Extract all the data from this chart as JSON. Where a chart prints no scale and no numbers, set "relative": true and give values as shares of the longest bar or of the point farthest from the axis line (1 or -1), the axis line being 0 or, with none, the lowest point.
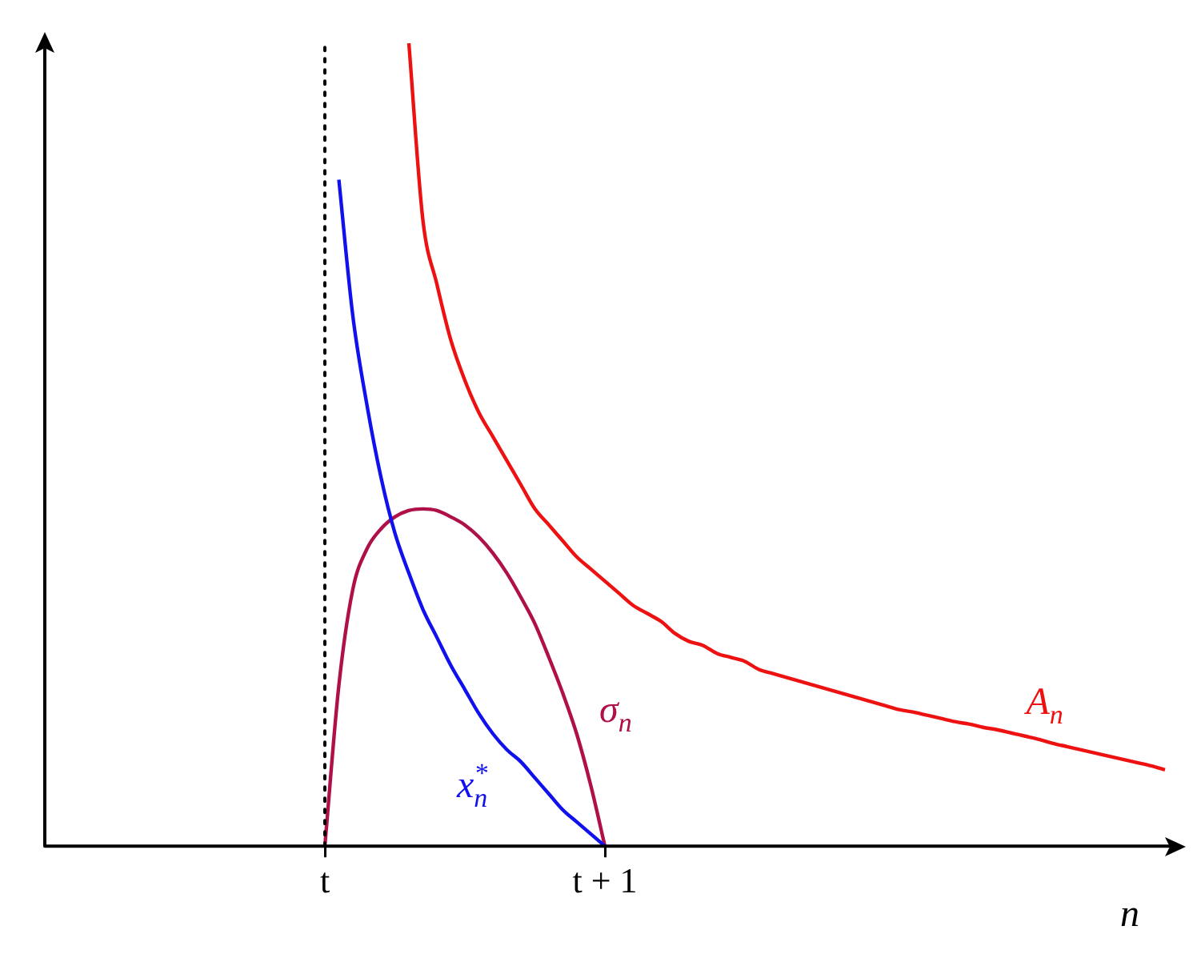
{
  "chart_data": {
    "type": "line",
    "relative": true,
    "xlabel": "n",
    "categories": [
      null,
      null,
      null,
      null,
      null,
      null,
      null,
      null,
      null,
      null,
      null,
      null,
      null,
      null,
      null,
      null,
      null,
      null,
      null,
      null,
      "t",
      null,
      null,
      null,
      null,
      null,
      null,
      null,
      null,
      null,
      null,
      null,
      null,
      null,
      null,
      null,
      null,
      null,
      null,
      null,
      "t + 1",
      null,
      null,
      null,
      null,
      null,
      null,
      null,
      null,
      null,
      null,
      null,
      null,
      null,
      null,
      null,
      null,
      null,
      null,
      null,
      null,
      null,
      null,
      null,
      null,
      null,
      null,
      null,
      null,
      null,
      null,
      null,
      null,
      null,
      null,
      null,
      null,
      null,
      null,
      null,
      null
    ],
    "tick_labels": "x",
    "grid": false,
    "legend": false,
    "marker": "none",
    "line_style": "solid",
    "ref_lines": [
      {
        "axis": "x",
        "value": "t",
        "color": "#000000",
        "line_style": "dotted"
      }
    ],
    "series": [
      {
        "name": "A$_{n}$",
        "color": "#ee1111",
        "values": [
          null,
          null,
          null,
          null,
          null,
          null,
          null,
          null,
          null,
          null,
          null,
          null,
          null,
          null,
          null,
          null,
          null,
          null,
          null,
          null,
          null,
          null,
          null,
          null,
          null,
          null,
          1.0,
          0.78,
          0.7,
          0.63,
          0.58,
          0.54,
          0.51,
          0.48,
          0.45,
          0.42,
          0.4,
          0.38,
          0.36,
          0.345,
          0.33,
          0.315,
          0.3,
          0.29,
          0.28,
          0.265,
          0.255,
          0.25,
          0.24,
          0.235,
          0.23,
          0.22,
          0.215,
          0.21,
          0.205,
          0.2,
          0.195,
          0.19,
          0.185,
          0.18,
          0.175,
          0.17,
          0.167,
          0.163,
          0.159,
          0.155,
          0.152,
          0.148,
          0.145,
          0.141,
          0.137,
          0.133,
          0.128,
          0.124,
          0.12,
          0.116,
          0.112,
          0.108,
          0.104,
          0.1,
          0.095
        ]
      },
      {
        "name": "x$^{*}$$_{n}$",
        "color": "#1111ee",
        "values": [
          null,
          null,
          null,
          null,
          null,
          null,
          null,
          null,
          null,
          null,
          null,
          null,
          null,
          null,
          null,
          null,
          null,
          null,
          null,
          null,
          null,
          0.83,
          0.66,
          0.55,
          0.46,
          0.39,
          0.34,
          0.295,
          0.26,
          0.225,
          0.195,
          0.165,
          0.14,
          0.12,
          0.105,
          0.085,
          0.065,
          0.045,
          0.03,
          0.015,
          0,
          null,
          null,
          null,
          null,
          null,
          null,
          null,
          null,
          null,
          null,
          null,
          null,
          null,
          null,
          null,
          null,
          null,
          null,
          null,
          null,
          null,
          null,
          null,
          null,
          null,
          null,
          null,
          null,
          null,
          null,
          null,
          null,
          null,
          null,
          null,
          null,
          null,
          null,
          null,
          null
        ]
      },
      {
        "name": "σ$_{n}$",
        "color": "#b0104a",
        "values": [
          null,
          null,
          null,
          null,
          null,
          null,
          null,
          null,
          null,
          null,
          null,
          null,
          null,
          null,
          null,
          null,
          null,
          null,
          null,
          null,
          0,
          0.2,
          0.32,
          0.37,
          0.395,
          0.41,
          0.418,
          0.42,
          0.418,
          0.41,
          0.4,
          0.385,
          0.365,
          0.34,
          0.31,
          0.277,
          0.235,
          0.19,
          0.139,
          0.075,
          0,
          null,
          null,
          null,
          null,
          null,
          null,
          null,
          null,
          null,
          null,
          null,
          null,
          null,
          null,
          null,
          null,
          null,
          null,
          null,
          null,
          null,
          null,
          null,
          null,
          null,
          null,
          null,
          null,
          null,
          null,
          null,
          null,
          null,
          null,
          null,
          null,
          null,
          null,
          null,
          null
        ]
      }
    ]
  }
}
